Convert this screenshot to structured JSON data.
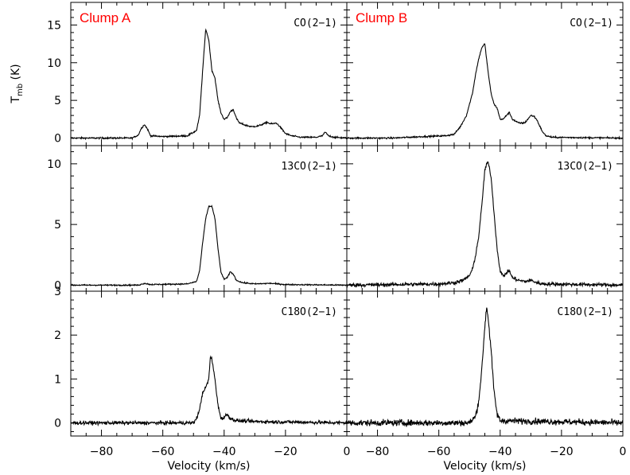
{
  "chart_data": {
    "type": "line",
    "x_axis": {
      "label": "Velocity (km/s)",
      "range": [
        -90,
        0
      ],
      "ticks": [
        -80,
        -60,
        -40,
        -20,
        0
      ],
      "tick_labels": [
        "−80",
        "−60",
        "−40",
        "−20",
        "0"
      ]
    },
    "y_axis": {
      "label": "T",
      "label_subscript": "mb",
      "label_unit": " (K)"
    },
    "columns": [
      {
        "title": "Clump A",
        "title_color": "#ff0000"
      },
      {
        "title": "Clump B",
        "title_color": "#ff0000"
      }
    ],
    "rows": [
      {
        "line": "CO(2−1)",
        "ylim": [
          -1,
          18
        ],
        "ticks": [
          0,
          5,
          10,
          15
        ],
        "tick_labels": [
          "0",
          "5",
          "10",
          "15"
        ]
      },
      {
        "line": "13CO(2−1)",
        "ylim": [
          -0.5,
          11.5
        ],
        "ticks": [
          0,
          5,
          10
        ],
        "tick_labels": [
          "0",
          "5",
          "10"
        ]
      },
      {
        "line": "C18O(2−1)",
        "ylim": [
          -0.3,
          3
        ],
        "ticks": [
          0,
          1,
          2,
          3
        ],
        "tick_labels": [
          "0",
          "1",
          "2",
          "3"
        ]
      }
    ],
    "panels": [
      {
        "column": 0,
        "row": 0,
        "label": "CO(2−1)",
        "noise": 0.1,
        "points": [
          [
            -90,
            0
          ],
          [
            -70,
            0
          ],
          [
            -68,
            0.4
          ],
          [
            -67,
            1.3
          ],
          [
            -66,
            1.8
          ],
          [
            -65,
            1.2
          ],
          [
            -64,
            0.3
          ],
          [
            -60,
            0.2
          ],
          [
            -52,
            0.3
          ],
          [
            -49,
            1
          ],
          [
            -48,
            3
          ],
          [
            -47,
            9
          ],
          [
            -46,
            14.5
          ],
          [
            -45,
            13
          ],
          [
            -44,
            9
          ],
          [
            -43,
            8
          ],
          [
            -42,
            5
          ],
          [
            -41,
            3.3
          ],
          [
            -40,
            2.5
          ],
          [
            -39,
            2.7
          ],
          [
            -38,
            3.5
          ],
          [
            -37,
            3.8
          ],
          [
            -36,
            2.6
          ],
          [
            -35,
            2
          ],
          [
            -33,
            1.7
          ],
          [
            -31,
            1.5
          ],
          [
            -29,
            1.6
          ],
          [
            -27,
            1.9
          ],
          [
            -26,
            2.1
          ],
          [
            -25,
            1.9
          ],
          [
            -24,
            1.9
          ],
          [
            -23,
            2
          ],
          [
            -22,
            1.6
          ],
          [
            -21,
            1.1
          ],
          [
            -20,
            0.6
          ],
          [
            -18,
            0.3
          ],
          [
            -15,
            0.1
          ],
          [
            -10,
            0.1
          ],
          [
            -8,
            0.3
          ],
          [
            -7,
            0.8
          ],
          [
            -6,
            0.3
          ],
          [
            -4,
            0.1
          ],
          [
            0,
            0
          ]
        ]
      },
      {
        "column": 1,
        "row": 0,
        "label": "CO(2−1)",
        "noise": 0.1,
        "points": [
          [
            -90,
            0
          ],
          [
            -75,
            0
          ],
          [
            -65,
            0.2
          ],
          [
            -58,
            0.3
          ],
          [
            -55,
            0.5
          ],
          [
            -53,
            1.5
          ],
          [
            -51,
            3
          ],
          [
            -50,
            4.5
          ],
          [
            -49,
            6
          ],
          [
            -48,
            8.5
          ],
          [
            -47,
            10.5
          ],
          [
            -46,
            12
          ],
          [
            -45,
            12.5
          ],
          [
            -44,
            9
          ],
          [
            -43,
            6
          ],
          [
            -42,
            4.5
          ],
          [
            -41,
            4
          ],
          [
            -40,
            2.5
          ],
          [
            -39,
            2.5
          ],
          [
            -38,
            3
          ],
          [
            -37,
            3.4
          ],
          [
            -36,
            2.5
          ],
          [
            -34,
            2
          ],
          [
            -32,
            2
          ],
          [
            -31,
            2.5
          ],
          [
            -30,
            3
          ],
          [
            -29,
            2.9
          ],
          [
            -28,
            2.4
          ],
          [
            -27,
            1.5
          ],
          [
            -26,
            0.7
          ],
          [
            -25,
            0.3
          ],
          [
            -23,
            0.1
          ],
          [
            0,
            0
          ]
        ]
      },
      {
        "column": 0,
        "row": 1,
        "label": "13CO(2−1)",
        "noise": 0.05,
        "points": [
          [
            -90,
            0
          ],
          [
            -68,
            0
          ],
          [
            -66,
            0.15
          ],
          [
            -64,
            0.05
          ],
          [
            -52,
            0.1
          ],
          [
            -49,
            0.3
          ],
          [
            -48,
            1.2
          ],
          [
            -47,
            3.5
          ],
          [
            -46,
            5.5
          ],
          [
            -45,
            6.5
          ],
          [
            -44,
            6.5
          ],
          [
            -43,
            5.5
          ],
          [
            -42,
            3
          ],
          [
            -41,
            1
          ],
          [
            -40,
            0.5
          ],
          [
            -39,
            0.6
          ],
          [
            -38,
            1.1
          ],
          [
            -37,
            0.9
          ],
          [
            -36,
            0.4
          ],
          [
            -34,
            0.2
          ],
          [
            -30,
            0.1
          ],
          [
            -25,
            0.15
          ],
          [
            -20,
            0.05
          ],
          [
            0,
            0
          ]
        ]
      },
      {
        "column": 1,
        "row": 1,
        "label": "13CO(2−1)",
        "noise": 0.15,
        "points": [
          [
            -90,
            0
          ],
          [
            -60,
            0.1
          ],
          [
            -55,
            0.2
          ],
          [
            -52,
            0.4
          ],
          [
            -50,
            0.8
          ],
          [
            -49,
            1.3
          ],
          [
            -48,
            2.5
          ],
          [
            -47,
            4
          ],
          [
            -46,
            6.5
          ],
          [
            -45,
            9.5
          ],
          [
            -44,
            10.2
          ],
          [
            -43,
            9
          ],
          [
            -42,
            6
          ],
          [
            -41,
            3
          ],
          [
            -40,
            1.2
          ],
          [
            -39,
            0.7
          ],
          [
            -38,
            1
          ],
          [
            -37,
            1.2
          ],
          [
            -36,
            0.6
          ],
          [
            -34,
            0.4
          ],
          [
            -32,
            0.3
          ],
          [
            -30,
            0.4
          ],
          [
            -28,
            0.2
          ],
          [
            -26,
            0.1
          ],
          [
            0,
            0
          ]
        ]
      },
      {
        "column": 0,
        "row": 2,
        "label": "C18O(2−1)",
        "noise": 0.04,
        "points": [
          [
            -90,
            0
          ],
          [
            -50,
            0
          ],
          [
            -49,
            0.1
          ],
          [
            -48,
            0.3
          ],
          [
            -47,
            0.7
          ],
          [
            -46,
            0.8
          ],
          [
            -45,
            1
          ],
          [
            -44.5,
            1.5
          ],
          [
            -44,
            1.45
          ],
          [
            -43,
            1
          ],
          [
            -42,
            0.4
          ],
          [
            -41,
            0.1
          ],
          [
            -40,
            0.12
          ],
          [
            -39,
            0.2
          ],
          [
            -38,
            0.1
          ],
          [
            -36,
            0.05
          ],
          [
            -30,
            0.03
          ],
          [
            0,
            0
          ]
        ]
      },
      {
        "column": 1,
        "row": 2,
        "label": "C18O(2−1)",
        "noise": 0.07,
        "points": [
          [
            -90,
            0
          ],
          [
            -50,
            0
          ],
          [
            -48,
            0.15
          ],
          [
            -47,
            0.5
          ],
          [
            -46,
            1.2
          ],
          [
            -45,
            2.2
          ],
          [
            -44.4,
            2.65
          ],
          [
            -44,
            2.45
          ],
          [
            -43,
            1.7
          ],
          [
            -42,
            0.7
          ],
          [
            -41,
            0.2
          ],
          [
            -40,
            0.05
          ],
          [
            0,
            0
          ]
        ]
      }
    ]
  }
}
